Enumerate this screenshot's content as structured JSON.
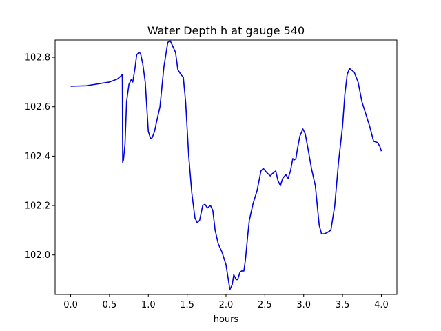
{
  "chart_data": {
    "type": "line",
    "title": "Water Depth h at gauge 540",
    "xlabel": "hours",
    "ylabel": "",
    "xlim": [
      -0.2,
      4.2
    ],
    "ylim": [
      101.84,
      102.87
    ],
    "xticks": [
      0.0,
      0.5,
      1.0,
      1.5,
      2.0,
      2.5,
      3.0,
      3.5,
      4.0
    ],
    "xtick_labels": [
      "0.0",
      "0.5",
      "1.0",
      "1.5",
      "2.0",
      "2.5",
      "3.0",
      "3.5",
      "4.0"
    ],
    "yticks": [
      102.0,
      102.2,
      102.4,
      102.6,
      102.8
    ],
    "ytick_labels": [
      "102.0",
      "102.2",
      "102.4",
      "102.6",
      "102.8"
    ],
    "grid": false,
    "series": [
      {
        "name": "",
        "color": "#0000dd",
        "x": [
          0.0,
          0.1,
          0.2,
          0.3,
          0.4,
          0.5,
          0.6,
          0.65,
          0.665,
          0.67,
          0.68,
          0.7,
          0.72,
          0.75,
          0.78,
          0.8,
          0.83,
          0.85,
          0.88,
          0.9,
          0.93,
          0.96,
          1.0,
          1.03,
          1.05,
          1.08,
          1.1,
          1.15,
          1.2,
          1.25,
          1.28,
          1.3,
          1.35,
          1.38,
          1.42,
          1.45,
          1.48,
          1.52,
          1.56,
          1.6,
          1.63,
          1.66,
          1.7,
          1.73,
          1.76,
          1.8,
          1.83,
          1.86,
          1.9,
          1.95,
          2.0,
          2.05,
          2.08,
          2.1,
          2.13,
          2.15,
          2.18,
          2.2,
          2.23,
          2.25,
          2.28,
          2.3,
          2.35,
          2.4,
          2.45,
          2.48,
          2.52,
          2.57,
          2.6,
          2.64,
          2.67,
          2.7,
          2.73,
          2.77,
          2.8,
          2.83,
          2.86,
          2.88,
          2.9,
          2.92,
          2.95,
          2.99,
          3.02,
          3.05,
          3.1,
          3.15,
          3.2,
          3.23,
          3.26,
          3.3,
          3.35,
          3.4,
          3.45,
          3.5,
          3.53,
          3.56,
          3.59,
          3.61,
          3.65,
          3.7,
          3.75,
          3.8,
          3.85,
          3.9,
          3.95,
          3.98,
          4.0
        ],
        "y": [
          102.683,
          102.684,
          102.685,
          102.69,
          102.695,
          102.7,
          102.712,
          102.725,
          102.73,
          102.375,
          102.385,
          102.45,
          102.62,
          102.69,
          102.71,
          102.7,
          102.76,
          102.81,
          102.82,
          102.815,
          102.77,
          102.7,
          102.5,
          102.47,
          102.475,
          102.5,
          102.53,
          102.6,
          102.76,
          102.86,
          102.868,
          102.855,
          102.82,
          102.75,
          102.73,
          102.72,
          102.62,
          102.4,
          102.25,
          102.15,
          102.13,
          102.14,
          102.2,
          102.205,
          102.19,
          102.2,
          102.18,
          102.1,
          102.045,
          102.01,
          101.96,
          101.86,
          101.88,
          101.92,
          101.9,
          101.9,
          101.93,
          101.935,
          101.935,
          101.98,
          102.08,
          102.14,
          102.21,
          102.26,
          102.34,
          102.35,
          102.335,
          102.32,
          102.33,
          102.34,
          102.3,
          102.28,
          102.31,
          102.325,
          102.31,
          102.34,
          102.39,
          102.385,
          102.39,
          102.43,
          102.48,
          102.51,
          102.49,
          102.44,
          102.35,
          102.28,
          102.12,
          102.085,
          102.085,
          102.09,
          102.1,
          102.2,
          102.38,
          102.52,
          102.65,
          102.73,
          102.755,
          102.75,
          102.74,
          102.7,
          102.62,
          102.57,
          102.52,
          102.46,
          102.455,
          102.44,
          102.42
        ]
      }
    ]
  }
}
